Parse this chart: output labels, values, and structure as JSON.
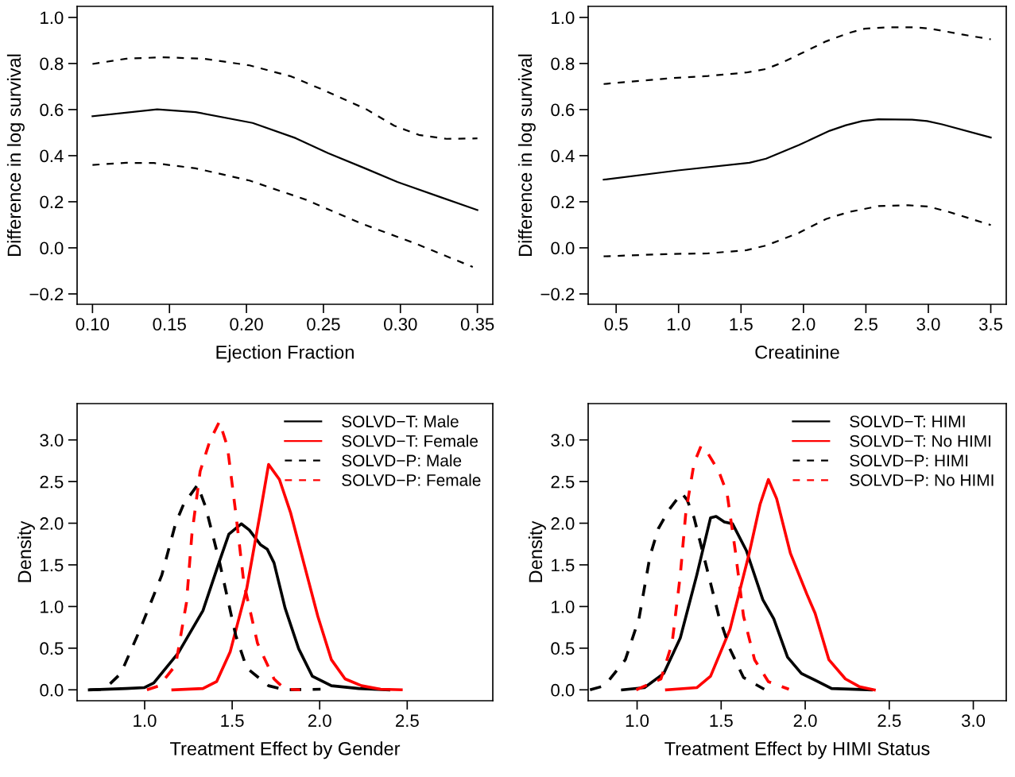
{
  "chart_data": [
    {
      "type": "line",
      "xlabel": "Ejection Fraction",
      "ylabel": "Difference in log survival",
      "xlim": [
        0.09,
        0.36
      ],
      "ylim": [
        -0.245,
        1.048
      ],
      "xticks": [
        {
          "value": 0.1,
          "label": "0.10"
        },
        {
          "value": 0.15,
          "label": "0.15"
        },
        {
          "value": 0.2,
          "label": "0.20"
        },
        {
          "value": 0.25,
          "label": "0.25"
        },
        {
          "value": 0.3,
          "label": "0.30"
        },
        {
          "value": 0.35,
          "label": "0.35"
        }
      ],
      "yticks": [
        {
          "value": -0.2,
          "label": "−0.2"
        },
        {
          "value": 0.0,
          "label": "0.0"
        },
        {
          "value": 0.2,
          "label": "0.2"
        },
        {
          "value": 0.4,
          "label": "0.4"
        },
        {
          "value": 0.6,
          "label": "0.6"
        },
        {
          "value": 0.8,
          "label": "0.8"
        },
        {
          "value": 1.0,
          "label": "1.0"
        }
      ],
      "grid": false,
      "legend": false,
      "series": [
        {
          "color": "#000000",
          "line_style": "solid",
          "x": [
            0.1,
            0.142,
            0.167,
            0.204,
            0.232,
            0.253,
            0.277,
            0.298,
            0.326,
            0.35
          ],
          "values": [
            0.571,
            0.601,
            0.589,
            0.542,
            0.476,
            0.411,
            0.345,
            0.286,
            0.22,
            0.164
          ]
        },
        {
          "color": "#000000",
          "line_style": "dashed",
          "x": [
            0.1,
            0.122,
            0.145,
            0.172,
            0.202,
            0.229,
            0.25,
            0.278,
            0.296,
            0.312,
            0.33,
            0.35
          ],
          "values": [
            0.798,
            0.821,
            0.827,
            0.821,
            0.792,
            0.744,
            0.685,
            0.601,
            0.53,
            0.49,
            0.473,
            0.475
          ]
        },
        {
          "color": "#000000",
          "line_style": "dashed",
          "x": [
            0.1,
            0.122,
            0.14,
            0.167,
            0.202,
            0.239,
            0.274,
            0.31,
            0.347
          ],
          "values": [
            0.36,
            0.369,
            0.368,
            0.345,
            0.292,
            0.208,
            0.107,
            0.018,
            -0.083
          ]
        }
      ]
    },
    {
      "type": "line",
      "xlabel": "Creatinine",
      "ylabel": "Difference in log survival",
      "xlim": [
        0.276,
        3.624
      ],
      "ylim": [
        -0.245,
        1.048
      ],
      "xticks": [
        {
          "value": 0.5,
          "label": "0.5"
        },
        {
          "value": 1.0,
          "label": "1.0"
        },
        {
          "value": 1.5,
          "label": "1.5"
        },
        {
          "value": 2.0,
          "label": "2.0"
        },
        {
          "value": 2.5,
          "label": "2.5"
        },
        {
          "value": 3.0,
          "label": "3.0"
        },
        {
          "value": 3.5,
          "label": "3.5"
        }
      ],
      "yticks": [
        {
          "value": -0.2,
          "label": "−0.2"
        },
        {
          "value": 0.0,
          "label": "0.0"
        },
        {
          "value": 0.2,
          "label": "0.2"
        },
        {
          "value": 0.4,
          "label": "0.4"
        },
        {
          "value": 0.6,
          "label": "0.6"
        },
        {
          "value": 0.8,
          "label": "0.8"
        },
        {
          "value": 1.0,
          "label": "1.0"
        }
      ],
      "grid": false,
      "legend": false,
      "series": [
        {
          "color": "#000000",
          "line_style": "solid",
          "x": [
            0.4,
            0.994,
            1.567,
            1.7,
            1.964,
            2.21,
            2.34,
            2.47,
            2.6,
            2.87,
            2.99,
            3.11,
            3.5
          ],
          "values": [
            0.296,
            0.336,
            0.369,
            0.387,
            0.446,
            0.508,
            0.532,
            0.55,
            0.558,
            0.556,
            0.55,
            0.536,
            0.479
          ]
        },
        {
          "color": "#000000",
          "line_style": "dashed",
          "x": [
            0.4,
            0.905,
            1.236,
            1.545,
            1.7,
            1.83,
            2.01,
            2.18,
            2.36,
            2.49,
            2.67,
            2.89,
            3.02,
            3.28,
            3.5
          ],
          "values": [
            0.711,
            0.735,
            0.746,
            0.761,
            0.776,
            0.804,
            0.851,
            0.896,
            0.932,
            0.951,
            0.957,
            0.957,
            0.951,
            0.925,
            0.905
          ]
        },
        {
          "color": "#000000",
          "line_style": "dashed",
          "x": [
            0.4,
            0.905,
            1.236,
            1.545,
            1.7,
            1.964,
            2.18,
            2.36,
            2.6,
            2.84,
            3.0,
            3.17,
            3.5
          ],
          "values": [
            -0.037,
            -0.027,
            -0.024,
            -0.01,
            0.01,
            0.065,
            0.125,
            0.155,
            0.181,
            0.185,
            0.179,
            0.155,
            0.099
          ]
        }
      ]
    },
    {
      "type": "line",
      "xlabel": "Treatment Effect by Gender",
      "ylabel": "Density",
      "xlim": [
        0.614,
        2.989
      ],
      "ylim": [
        -0.131,
        3.436
      ],
      "xticks": [
        {
          "value": 1.0,
          "label": "1.0"
        },
        {
          "value": 1.5,
          "label": "1.5"
        },
        {
          "value": 2.0,
          "label": "2.0"
        },
        {
          "value": 2.5,
          "label": "2.5"
        }
      ],
      "yticks": [
        {
          "value": 0.0,
          "label": "0.0"
        },
        {
          "value": 0.5,
          "label": "0.5"
        },
        {
          "value": 1.0,
          "label": "1.0"
        },
        {
          "value": 1.5,
          "label": "1.5"
        },
        {
          "value": 2.0,
          "label": "2.0"
        },
        {
          "value": 2.5,
          "label": "2.5"
        },
        {
          "value": 3.0,
          "label": "3.0"
        }
      ],
      "grid": false,
      "legend": "top right",
      "series": [
        {
          "name": "SOLVD−T: Male",
          "color": "#000000",
          "line_style": "solid",
          "x": [
            0.684,
            0.895,
            0.997,
            1.052,
            1.192,
            1.333,
            1.427,
            1.481,
            1.552,
            1.598,
            1.661,
            1.7,
            1.739,
            1.802,
            1.88,
            1.958,
            2.067,
            2.223,
            2.395
          ],
          "values": [
            0,
            0.016,
            0.026,
            0.082,
            0.443,
            0.951,
            1.541,
            1.869,
            1.993,
            1.918,
            1.744,
            1.689,
            1.525,
            0.984,
            0.492,
            0.164,
            0.049,
            0.016,
            0
          ]
        },
        {
          "name": "SOLVD−T: Female",
          "color": "#ff0000",
          "line_style": "solid",
          "x": [
            1.161,
            1.333,
            1.411,
            1.489,
            1.583,
            1.661,
            1.708,
            1.77,
            1.833,
            1.911,
            1.989,
            2.067,
            2.145,
            2.239,
            2.348,
            2.466
          ],
          "values": [
            0,
            0.016,
            0.098,
            0.459,
            1.213,
            2.131,
            2.705,
            2.525,
            2.131,
            1.508,
            0.885,
            0.361,
            0.131,
            0.049,
            0.007,
            0
          ]
        },
        {
          "name": "SOLVD−P: Male",
          "color": "#000000",
          "line_style": "dashed",
          "x": [
            0.684,
            0.77,
            0.864,
            0.973,
            1.098,
            1.177,
            1.223,
            1.302,
            1.348,
            1.427,
            1.52,
            1.583,
            1.708,
            1.802,
            2.005
          ],
          "values": [
            0,
            0.007,
            0.197,
            0.721,
            1.377,
            2.0,
            2.23,
            2.459,
            2.197,
            1.541,
            0.656,
            0.262,
            0.049,
            0,
            0.007
          ]
        },
        {
          "name": "SOLVD−P: Female",
          "color": "#ff0000",
          "line_style": "dashed",
          "x": [
            1.013,
            1.083,
            1.177,
            1.239,
            1.27,
            1.317,
            1.372,
            1.427,
            1.473,
            1.52,
            1.567,
            1.645,
            1.739,
            1.802,
            1.888
          ],
          "values": [
            0,
            0.049,
            0.295,
            1.049,
            1.869,
            2.623,
            2.984,
            3.22,
            2.918,
            2.131,
            1.279,
            0.557,
            0.131,
            0.007,
            0
          ]
        }
      ]
    },
    {
      "type": "line",
      "xlabel": "Treatment Effect by HIMI Status",
      "ylabel": "Density",
      "xlim": [
        0.709,
        3.196
      ],
      "ylim": [
        -0.131,
        3.436
      ],
      "xticks": [
        {
          "value": 1.0,
          "label": "1.0"
        },
        {
          "value": 1.5,
          "label": "1.5"
        },
        {
          "value": 2.0,
          "label": "2.0"
        },
        {
          "value": 2.5,
          "label": "2.5"
        },
        {
          "value": 3.0,
          "label": "3.0"
        }
      ],
      "yticks": [
        {
          "value": 0.0,
          "label": "0.0"
        },
        {
          "value": 0.5,
          "label": "0.5"
        },
        {
          "value": 1.0,
          "label": "1.0"
        },
        {
          "value": 1.5,
          "label": "1.5"
        },
        {
          "value": 2.0,
          "label": "2.0"
        },
        {
          "value": 2.5,
          "label": "2.5"
        },
        {
          "value": 3.0,
          "label": "3.0"
        }
      ],
      "grid": false,
      "legend": "top right",
      "series": [
        {
          "name": "SOLVD−T: HIMI",
          "color": "#000000",
          "line_style": "solid",
          "x": [
            0.913,
            1.044,
            1.159,
            1.257,
            1.355,
            1.437,
            1.47,
            1.519,
            1.568,
            1.65,
            1.748,
            1.813,
            1.895,
            1.977,
            2.059,
            2.157,
            2.394
          ],
          "values": [
            0,
            0.026,
            0.197,
            0.623,
            1.377,
            2.066,
            2.082,
            2.016,
            1.993,
            1.672,
            1.082,
            0.852,
            0.393,
            0.197,
            0.115,
            0.016,
            0
          ]
        },
        {
          "name": "SOLVD−T: No HIMI",
          "color": "#ff0000",
          "line_style": "solid",
          "x": [
            1.175,
            1.355,
            1.437,
            1.552,
            1.667,
            1.732,
            1.781,
            1.83,
            1.912,
            2.01,
            2.059,
            2.141,
            2.239,
            2.321,
            2.411
          ],
          "values": [
            0,
            0.026,
            0.164,
            0.721,
            1.639,
            2.23,
            2.525,
            2.295,
            1.639,
            1.148,
            0.918,
            0.361,
            0.131,
            0.039,
            0
          ]
        },
        {
          "name": "SOLVD−P: HIMI",
          "color": "#000000",
          "line_style": "dashed",
          "x": [
            0.72,
            0.807,
            0.93,
            1.011,
            1.077,
            1.126,
            1.191,
            1.265,
            1.298,
            1.339,
            1.421,
            1.486,
            1.552,
            1.633,
            1.756
          ],
          "values": [
            0,
            0.049,
            0.361,
            0.852,
            1.607,
            1.934,
            2.164,
            2.361,
            2.279,
            2.066,
            1.41,
            0.885,
            0.492,
            0.148,
            0.007
          ]
        },
        {
          "name": "SOLVD−P: No HIMI",
          "color": "#ff0000",
          "line_style": "dashed",
          "x": [
            0.995,
            1.142,
            1.208,
            1.257,
            1.29,
            1.339,
            1.38,
            1.412,
            1.486,
            1.535,
            1.584,
            1.633,
            1.699,
            1.781,
            1.903
          ],
          "values": [
            0,
            0.131,
            0.557,
            1.377,
            2.131,
            2.721,
            2.925,
            2.869,
            2.623,
            2.361,
            1.672,
            0.885,
            0.361,
            0.098,
            0.007
          ]
        }
      ]
    }
  ]
}
